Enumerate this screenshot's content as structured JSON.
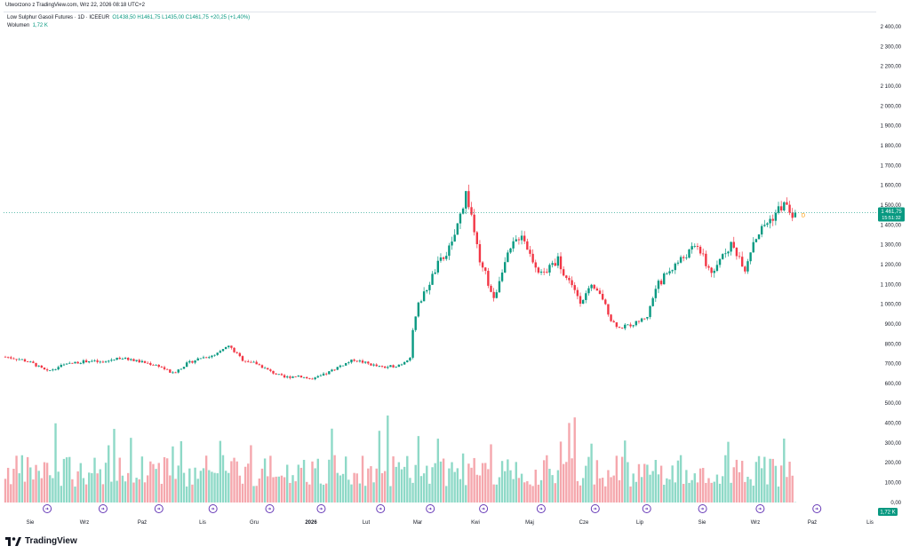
{
  "header": {
    "created_text": "Utworzono z TradingView.com, Wrz 22, 2026 08:18 UTC+2"
  },
  "legend": {
    "symbol": "Low Sulphur Gasoil Futures · 1D · ICEEUR",
    "ohlc": "O1438,50 H1461,75 L1435,00 C1461,75 +20,25 (+1,40%)",
    "volume_label": "Wolumen",
    "volume_value": "1,72 K"
  },
  "last_price": {
    "value": "1 461,75",
    "countdown": "15:51:32"
  },
  "last_volume": "1,72 K",
  "marker_label": "D",
  "footer": {
    "brand": "TradingView"
  },
  "colors": {
    "up": "#089981",
    "down": "#f23645",
    "vol_up": "#8ed9c7",
    "vol_down": "#f5a7ad",
    "grid": "#e0e3eb",
    "last": "#089981",
    "event": "#673ab7"
  },
  "icons": {
    "event": "event-marker-icon",
    "brand": "tradingview-logo-icon"
  },
  "chart_data": {
    "type": "candlestick",
    "price_axis_ticks": [
      "2 400,00",
      "2 300,00",
      "2 200,00",
      "2 100,00",
      "2 000,00",
      "1 900,00",
      "1 800,00",
      "1 700,00",
      "1 600,00",
      "1 500,00",
      "1 400,00",
      "1 300,00",
      "1 200,00",
      "1 100,00",
      "1 000,00",
      "900,00",
      "800,00",
      "700,00",
      "600,00"
    ],
    "price_axis_values": [
      2400,
      2300,
      2200,
      2100,
      2000,
      1900,
      1800,
      1700,
      1600,
      1500,
      1400,
      1300,
      1200,
      1100,
      1000,
      900,
      800,
      700,
      600
    ],
    "volume_axis_ticks": [
      "500,00",
      "400,00",
      "300,00",
      "200,00",
      "100,00",
      "0,00"
    ],
    "volume_axis_values": [
      500,
      400,
      300,
      200,
      100,
      0
    ],
    "time_axis": [
      "Sie",
      "Wrz",
      "Paź",
      "Lis",
      "Gru",
      "2026",
      "Lut",
      "Mar",
      "Kwi",
      "Maj",
      "Cze",
      "Lip",
      "Sie",
      "Wrz",
      "Paź",
      "Lis"
    ],
    "time_axis_bold_index": 5,
    "price_path": [
      [
        0,
        735
      ],
      [
        6,
        720
      ],
      [
        10,
        700
      ],
      [
        15,
        660
      ],
      [
        20,
        690
      ],
      [
        25,
        705
      ],
      [
        30,
        715
      ],
      [
        35,
        705
      ],
      [
        40,
        730
      ],
      [
        45,
        720
      ],
      [
        50,
        705
      ],
      [
        55,
        690
      ],
      [
        60,
        650
      ],
      [
        65,
        700
      ],
      [
        70,
        730
      ],
      [
        75,
        740
      ],
      [
        80,
        790
      ],
      [
        85,
        720
      ],
      [
        90,
        700
      ],
      [
        95,
        660
      ],
      [
        100,
        630
      ],
      [
        105,
        640
      ],
      [
        110,
        620
      ],
      [
        115,
        650
      ],
      [
        120,
        690
      ],
      [
        125,
        720
      ],
      [
        130,
        700
      ],
      [
        135,
        680
      ],
      [
        140,
        690
      ],
      [
        142,
        700
      ],
      [
        145,
        735
      ],
      [
        146,
        870
      ],
      [
        148,
        1000
      ],
      [
        150,
        1050
      ],
      [
        155,
        1200
      ],
      [
        160,
        1300
      ],
      [
        163,
        1450
      ],
      [
        165,
        1560
      ],
      [
        167,
        1450
      ],
      [
        170,
        1200
      ],
      [
        172,
        1150
      ],
      [
        175,
        1020
      ],
      [
        178,
        1180
      ],
      [
        182,
        1300
      ],
      [
        185,
        1360
      ],
      [
        188,
        1250
      ],
      [
        192,
        1150
      ],
      [
        195,
        1180
      ],
      [
        198,
        1230
      ],
      [
        200,
        1150
      ],
      [
        203,
        1100
      ],
      [
        206,
        1020
      ],
      [
        210,
        1080
      ],
      [
        214,
        1030
      ],
      [
        217,
        920
      ],
      [
        220,
        880
      ],
      [
        225,
        900
      ],
      [
        230,
        940
      ],
      [
        233,
        1080
      ],
      [
        236,
        1140
      ],
      [
        240,
        1200
      ],
      [
        244,
        1250
      ],
      [
        248,
        1300
      ],
      [
        251,
        1200
      ],
      [
        254,
        1150
      ],
      [
        257,
        1260
      ],
      [
        260,
        1300
      ],
      [
        263,
        1240
      ],
      [
        265,
        1180
      ],
      [
        268,
        1320
      ],
      [
        272,
        1400
      ],
      [
        275,
        1440
      ],
      [
        277,
        1480
      ],
      [
        279,
        1500
      ],
      [
        281,
        1470
      ],
      [
        283,
        1440
      ]
    ],
    "last_close": 1461.75,
    "volume_max": 500,
    "event_marker_x_fraction": [
      0.05,
      0.114,
      0.178,
      0.24,
      0.305,
      0.364,
      0.432,
      0.489,
      0.55,
      0.616,
      0.678,
      0.737,
      0.801,
      0.867,
      0.932
    ]
  }
}
